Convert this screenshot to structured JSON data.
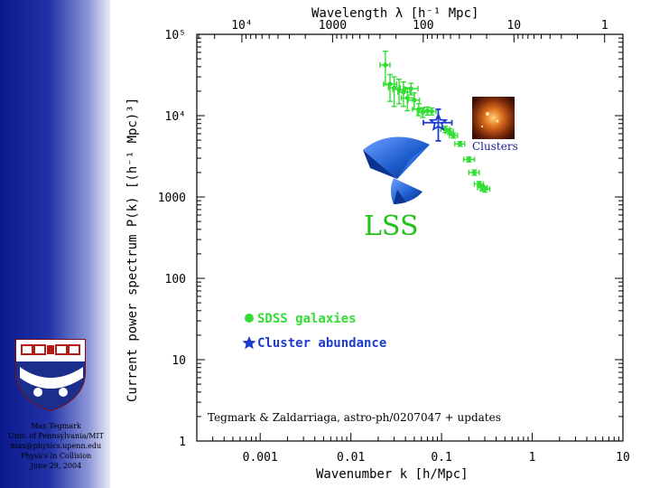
{
  "colors": {
    "sdss": "#33dd33",
    "cluster": "#1e3ccc",
    "lss_text": "#22c21a",
    "sidebar": "#1a2a9c"
  },
  "sidebar": {
    "logo_icon": "university-shield-icon",
    "lines": [
      "Max Tegmark",
      "Univ. of Pennsylvania/MIT",
      "max@physics.upenn.edu",
      "Physics in Collision",
      "June 29, 2004"
    ]
  },
  "chart_data": {
    "type": "scatter",
    "xlabel": "Wavenumber k [h/Mpc]",
    "ylabel": "Current power spectrum P(k) [(h⁻¹ Mpc)³]",
    "top_xlabel": "Wavelength λ [h⁻¹ Mpc]",
    "x_scale": "log",
    "y_scale": "log",
    "xlim": [
      0.0002,
      10
    ],
    "ylim": [
      1,
      100000
    ],
    "x_tick_labels": [
      "0.001",
      "0.01",
      "0.1",
      "1",
      "10"
    ],
    "top_tick_labels": [
      "10⁴",
      "1000",
      "100",
      "10",
      "1"
    ],
    "y_tick_labels": [
      "1",
      "10",
      "100",
      "1000",
      "10⁴",
      "10⁵"
    ],
    "grid": false,
    "legend_position": "lower-center",
    "annotations": {
      "lss": "LSS",
      "clusters": "Clusters",
      "credit": "Tegmark & Zaldarriaga, astro-ph/0207047 + updates"
    },
    "series": [
      {
        "name": "SDSS galaxies",
        "marker": "circle",
        "points": [
          {
            "x": 0.024,
            "y": 42000,
            "xerr": [
              0.021,
              0.027
            ],
            "yerr": [
              24000,
              62000
            ]
          },
          {
            "x": 0.027,
            "y": 24500,
            "xerr": [
              0.023,
              0.032
            ],
            "yerr": [
              15000,
              32000
            ]
          },
          {
            "x": 0.03,
            "y": 22000,
            "xerr": [
              0.026,
              0.035
            ],
            "yerr": [
              13000,
              30000
            ]
          },
          {
            "x": 0.034,
            "y": 21000,
            "xerr": [
              0.029,
              0.04
            ],
            "yerr": [
              14000,
              28000
            ]
          },
          {
            "x": 0.038,
            "y": 19500,
            "xerr": [
              0.033,
              0.045
            ],
            "yerr": [
              13000,
              26000
            ]
          },
          {
            "x": 0.042,
            "y": 16500,
            "xerr": [
              0.036,
              0.05
            ],
            "yerr": [
              11500,
              22000
            ]
          },
          {
            "x": 0.046,
            "y": 21500,
            "xerr": [
              0.039,
              0.055
            ],
            "yerr": [
              18000,
              25000
            ]
          },
          {
            "x": 0.05,
            "y": 15500,
            "xerr": [
              0.043,
              0.057
            ],
            "yerr": [
              12000,
              19000
            ]
          },
          {
            "x": 0.056,
            "y": 12000,
            "xerr": [
              0.048,
              0.064
            ],
            "yerr": [
              10000,
              14000
            ]
          },
          {
            "x": 0.062,
            "y": 11000,
            "xerr": [
              0.054,
              0.07
            ],
            "yerr": [
              9500,
              12500
            ]
          },
          {
            "x": 0.07,
            "y": 11500,
            "xerr": [
              0.062,
              0.078
            ],
            "yerr": [
              10200,
              12800
            ]
          },
          {
            "x": 0.078,
            "y": 11300,
            "xerr": [
              0.07,
              0.087
            ],
            "yerr": [
              10200,
              12400
            ]
          },
          {
            "x": 0.11,
            "y": 6800,
            "xerr": [
              0.098,
              0.123
            ],
            "yerr": [
              6200,
              7400
            ]
          },
          {
            "x": 0.122,
            "y": 6400,
            "xerr": [
              0.11,
              0.135
            ],
            "yerr": [
              5900,
              6900
            ]
          },
          {
            "x": 0.135,
            "y": 5700,
            "xerr": [
              0.122,
              0.15
            ],
            "yerr": [
              5300,
              6100
            ]
          },
          {
            "x": 0.16,
            "y": 4500,
            "xerr": [
              0.14,
              0.18
            ],
            "yerr": [
              4200,
              4800
            ]
          },
          {
            "x": 0.2,
            "y": 2900,
            "xerr": [
              0.175,
              0.23
            ],
            "yerr": [
              2700,
              3100
            ]
          },
          {
            "x": 0.23,
            "y": 2000,
            "xerr": [
              0.2,
              0.26
            ],
            "yerr": [
              1850,
              2150
            ]
          },
          {
            "x": 0.26,
            "y": 1450,
            "xerr": [
              0.23,
              0.29
            ],
            "yerr": [
              1350,
              1550
            ]
          },
          {
            "x": 0.28,
            "y": 1300,
            "xerr": [
              0.25,
              0.32
            ],
            "yerr": [
              1200,
              1400
            ]
          },
          {
            "x": 0.3,
            "y": 1250,
            "xerr": [
              0.27,
              0.34
            ],
            "yerr": [
              1150,
              1350
            ]
          }
        ]
      },
      {
        "name": "Cluster abundance",
        "marker": "star",
        "points": [
          {
            "x": 0.092,
            "y": 8200,
            "xerr": [
              0.063,
              0.13
            ],
            "yerr": [
              4900,
              12000
            ]
          }
        ]
      }
    ]
  }
}
